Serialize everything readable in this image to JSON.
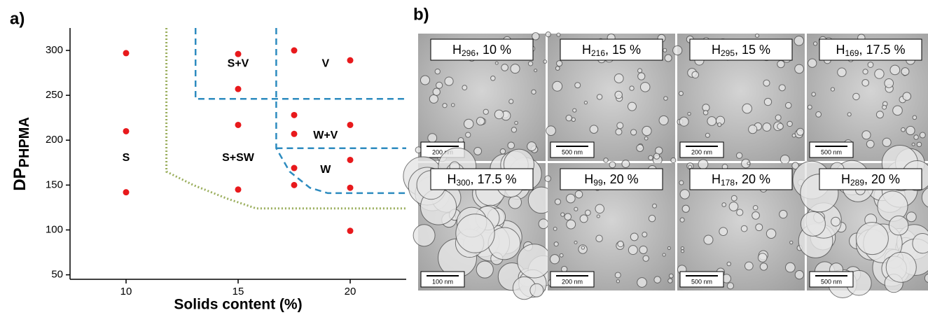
{
  "panel_a_label": "a)",
  "chart_data": {
    "type": "scatter",
    "x_label": "Solids content (%)",
    "y_label": "DP",
    "y_label_subscript": "PHPMA",
    "x": [
      10,
      10,
      10,
      15,
      15,
      15,
      15,
      17.5,
      17.5,
      17.5,
      17.5,
      17.5,
      20,
      20,
      20,
      20,
      20
    ],
    "values": [
      297,
      210,
      142,
      296,
      257,
      217,
      145,
      300,
      228,
      207,
      169,
      150,
      289,
      217,
      178,
      147,
      99
    ],
    "color": "#e8191c",
    "xlim": [
      7.5,
      22.5
    ],
    "ylim": [
      45,
      325
    ],
    "xticks": [
      10,
      15,
      20
    ],
    "yticks": [
      50,
      100,
      150,
      200,
      250,
      300
    ],
    "annotations": [
      {
        "text": "S",
        "x": 10,
        "y": 180
      },
      {
        "text": "S+V",
        "x": 15,
        "y": 285
      },
      {
        "text": "V",
        "x": 18.9,
        "y": 285
      },
      {
        "text": "S+SW",
        "x": 15,
        "y": 180
      },
      {
        "text": "W+V",
        "x": 18.9,
        "y": 205
      },
      {
        "text": "W",
        "x": 18.9,
        "y": 167
      }
    ],
    "boundaries": [
      {
        "style": "dotted",
        "color": "#9aae5c",
        "x": [
          11.8,
          11.8,
          13,
          14.5,
          15.8,
          22.5
        ],
        "y": [
          325,
          165,
          150,
          135,
          124,
          124
        ]
      },
      {
        "style": "dashed",
        "color": "#2d8bbf",
        "x": [
          13.1,
          13.1,
          22.5
        ],
        "y": [
          325,
          246,
          246
        ]
      },
      {
        "style": "dashed",
        "color": "#2d8bbf",
        "x": [
          16.7,
          16.7,
          17.3,
          18.2,
          19,
          22.5
        ],
        "y": [
          325,
          191,
          165,
          147,
          141,
          141
        ]
      },
      {
        "style": "dashed",
        "color": "#2d8bbf",
        "x": [
          16.7,
          22.5
        ],
        "y": [
          191,
          191
        ]
      }
    ]
  },
  "panel_b": {
    "label": "b)",
    "images": [
      {
        "name": "H",
        "dp": "296",
        "rest": ", 10 %",
        "scale_bar": "200 nm"
      },
      {
        "name": "H",
        "dp": "216",
        "rest": ", 15 %",
        "scale_bar": "500 nm"
      },
      {
        "name": "H",
        "dp": "295",
        "rest": ", 15 %",
        "scale_bar": "200 nm"
      },
      {
        "name": "H",
        "dp": "169",
        "rest": ", 17.5 %",
        "scale_bar": "500 nm"
      },
      {
        "name": "H",
        "dp": "300",
        "rest": ", 17.5 %",
        "scale_bar": "100 nm"
      },
      {
        "name": "H",
        "dp": "99",
        "rest": ", 20 %",
        "scale_bar": "200 nm"
      },
      {
        "name": "H",
        "dp": "178",
        "rest": ", 20 %",
        "scale_bar": "500 nm"
      },
      {
        "name": "H",
        "dp": "289",
        "rest": ", 20 %",
        "scale_bar": "500 nm"
      }
    ]
  }
}
